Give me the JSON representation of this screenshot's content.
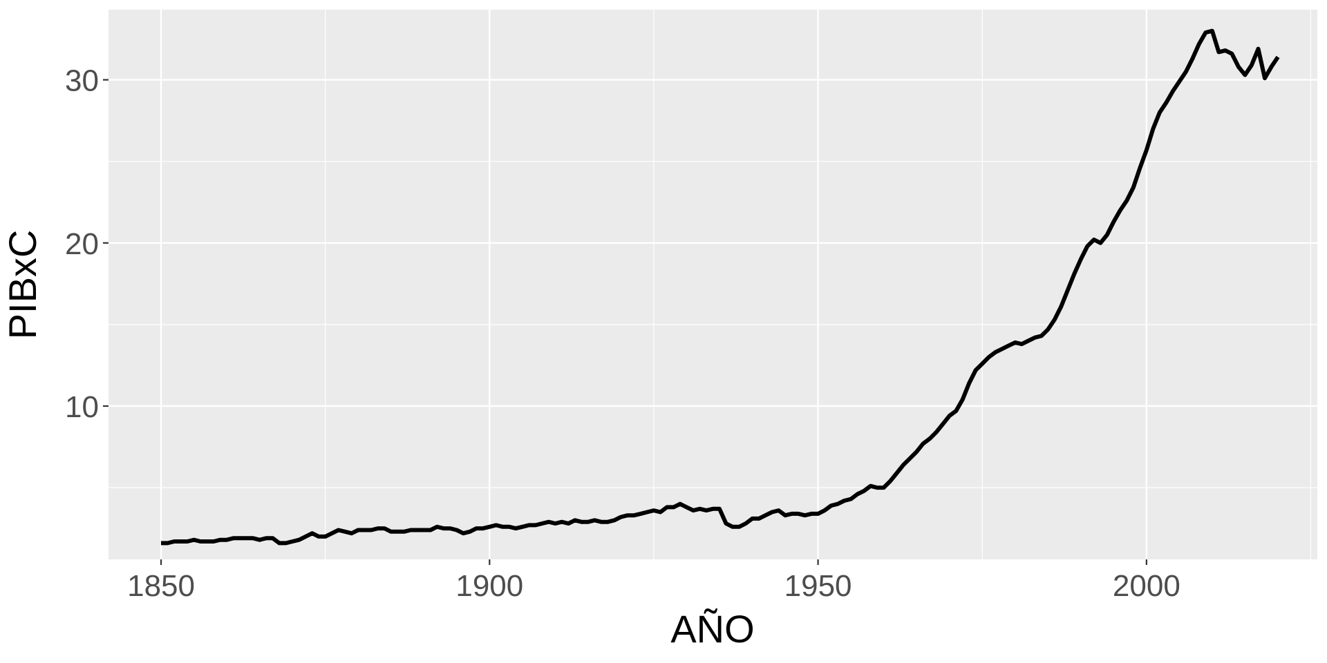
{
  "chart_data": {
    "type": "line",
    "title": "",
    "xlabel": "AÑO",
    "ylabel": "PIBxC",
    "xlim": [
      1842,
      2026
    ],
    "ylim": [
      0.6,
      34.3
    ],
    "xticks": [
      1850,
      1900,
      1950,
      2000
    ],
    "yticks": [
      10,
      20,
      30
    ],
    "grid": true,
    "legend": "none",
    "colors": {
      "panel": "#ebebeb",
      "grid": "#ffffff",
      "line": "#000000",
      "tick_label": "#4d4d4d"
    },
    "series": [
      {
        "points": [
          [
            1850,
            1.6
          ],
          [
            1851,
            1.6
          ],
          [
            1852,
            1.7
          ],
          [
            1853,
            1.7
          ],
          [
            1854,
            1.7
          ],
          [
            1855,
            1.8
          ],
          [
            1856,
            1.7
          ],
          [
            1857,
            1.7
          ],
          [
            1858,
            1.7
          ],
          [
            1859,
            1.8
          ],
          [
            1860,
            1.8
          ],
          [
            1861,
            1.9
          ],
          [
            1862,
            1.9
          ],
          [
            1863,
            1.9
          ],
          [
            1864,
            1.9
          ],
          [
            1865,
            1.8
          ],
          [
            1866,
            1.9
          ],
          [
            1867,
            1.9
          ],
          [
            1868,
            1.6
          ],
          [
            1869,
            1.6
          ],
          [
            1870,
            1.7
          ],
          [
            1871,
            1.8
          ],
          [
            1872,
            2.0
          ],
          [
            1873,
            2.2
          ],
          [
            1874,
            2.0
          ],
          [
            1875,
            2.0
          ],
          [
            1876,
            2.2
          ],
          [
            1877,
            2.4
          ],
          [
            1878,
            2.3
          ],
          [
            1879,
            2.2
          ],
          [
            1880,
            2.4
          ],
          [
            1881,
            2.4
          ],
          [
            1882,
            2.4
          ],
          [
            1883,
            2.5
          ],
          [
            1884,
            2.5
          ],
          [
            1885,
            2.3
          ],
          [
            1886,
            2.3
          ],
          [
            1887,
            2.3
          ],
          [
            1888,
            2.4
          ],
          [
            1889,
            2.4
          ],
          [
            1890,
            2.4
          ],
          [
            1891,
            2.4
          ],
          [
            1892,
            2.6
          ],
          [
            1893,
            2.5
          ],
          [
            1894,
            2.5
          ],
          [
            1895,
            2.4
          ],
          [
            1896,
            2.2
          ],
          [
            1897,
            2.3
          ],
          [
            1898,
            2.5
          ],
          [
            1899,
            2.5
          ],
          [
            1900,
            2.6
          ],
          [
            1901,
            2.7
          ],
          [
            1902,
            2.6
          ],
          [
            1903,
            2.6
          ],
          [
            1904,
            2.5
          ],
          [
            1905,
            2.6
          ],
          [
            1906,
            2.7
          ],
          [
            1907,
            2.7
          ],
          [
            1908,
            2.8
          ],
          [
            1909,
            2.9
          ],
          [
            1910,
            2.8
          ],
          [
            1911,
            2.9
          ],
          [
            1912,
            2.8
          ],
          [
            1913,
            3.0
          ],
          [
            1914,
            2.9
          ],
          [
            1915,
            2.9
          ],
          [
            1916,
            3.0
          ],
          [
            1917,
            2.9
          ],
          [
            1918,
            2.9
          ],
          [
            1919,
            3.0
          ],
          [
            1920,
            3.2
          ],
          [
            1921,
            3.3
          ],
          [
            1922,
            3.3
          ],
          [
            1923,
            3.4
          ],
          [
            1924,
            3.5
          ],
          [
            1925,
            3.6
          ],
          [
            1926,
            3.5
          ],
          [
            1927,
            3.8
          ],
          [
            1928,
            3.8
          ],
          [
            1929,
            4.0
          ],
          [
            1930,
            3.8
          ],
          [
            1931,
            3.6
          ],
          [
            1932,
            3.7
          ],
          [
            1933,
            3.6
          ],
          [
            1934,
            3.7
          ],
          [
            1935,
            3.7
          ],
          [
            1936,
            2.8
          ],
          [
            1937,
            2.6
          ],
          [
            1938,
            2.6
          ],
          [
            1939,
            2.8
          ],
          [
            1940,
            3.1
          ],
          [
            1941,
            3.1
          ],
          [
            1942,
            3.3
          ],
          [
            1943,
            3.5
          ],
          [
            1944,
            3.6
          ],
          [
            1945,
            3.3
          ],
          [
            1946,
            3.4
          ],
          [
            1947,
            3.4
          ],
          [
            1948,
            3.3
          ],
          [
            1949,
            3.4
          ],
          [
            1950,
            3.4
          ],
          [
            1951,
            3.6
          ],
          [
            1952,
            3.9
          ],
          [
            1953,
            4.0
          ],
          [
            1954,
            4.2
          ],
          [
            1955,
            4.3
          ],
          [
            1956,
            4.6
          ],
          [
            1957,
            4.8
          ],
          [
            1958,
            5.1
          ],
          [
            1959,
            5.0
          ],
          [
            1960,
            5.0
          ],
          [
            1961,
            5.4
          ],
          [
            1962,
            5.9
          ],
          [
            1963,
            6.4
          ],
          [
            1964,
            6.8
          ],
          [
            1965,
            7.2
          ],
          [
            1966,
            7.7
          ],
          [
            1967,
            8.0
          ],
          [
            1968,
            8.4
          ],
          [
            1969,
            8.9
          ],
          [
            1970,
            9.4
          ],
          [
            1971,
            9.7
          ],
          [
            1972,
            10.4
          ],
          [
            1973,
            11.4
          ],
          [
            1974,
            12.2
          ],
          [
            1975,
            12.6
          ],
          [
            1976,
            13.0
          ],
          [
            1977,
            13.3
          ],
          [
            1978,
            13.5
          ],
          [
            1979,
            13.7
          ],
          [
            1980,
            13.9
          ],
          [
            1981,
            13.8
          ],
          [
            1982,
            14.0
          ],
          [
            1983,
            14.2
          ],
          [
            1984,
            14.3
          ],
          [
            1985,
            14.7
          ],
          [
            1986,
            15.3
          ],
          [
            1987,
            16.1
          ],
          [
            1988,
            17.1
          ],
          [
            1989,
            18.1
          ],
          [
            1990,
            19.0
          ],
          [
            1991,
            19.8
          ],
          [
            1992,
            20.2
          ],
          [
            1993,
            20.0
          ],
          [
            1994,
            20.5
          ],
          [
            1995,
            21.3
          ],
          [
            1996,
            22.0
          ],
          [
            1997,
            22.6
          ],
          [
            1998,
            23.4
          ],
          [
            1999,
            24.6
          ],
          [
            2000,
            25.7
          ],
          [
            2001,
            27.0
          ],
          [
            2002,
            28.0
          ],
          [
            2003,
            28.6
          ],
          [
            2004,
            29.3
          ],
          [
            2005,
            29.9
          ],
          [
            2006,
            30.5
          ],
          [
            2007,
            31.3
          ],
          [
            2008,
            32.2
          ],
          [
            2009,
            32.9
          ],
          [
            2010,
            33.0
          ],
          [
            2011,
            31.7
          ],
          [
            2012,
            31.8
          ],
          [
            2013,
            31.6
          ],
          [
            2014,
            30.8
          ],
          [
            2015,
            30.3
          ],
          [
            2016,
            30.9
          ],
          [
            2017,
            31.9
          ],
          [
            2018,
            30.1
          ],
          [
            2019,
            30.8
          ],
          [
            2020,
            31.4
          ]
        ]
      }
    ]
  }
}
